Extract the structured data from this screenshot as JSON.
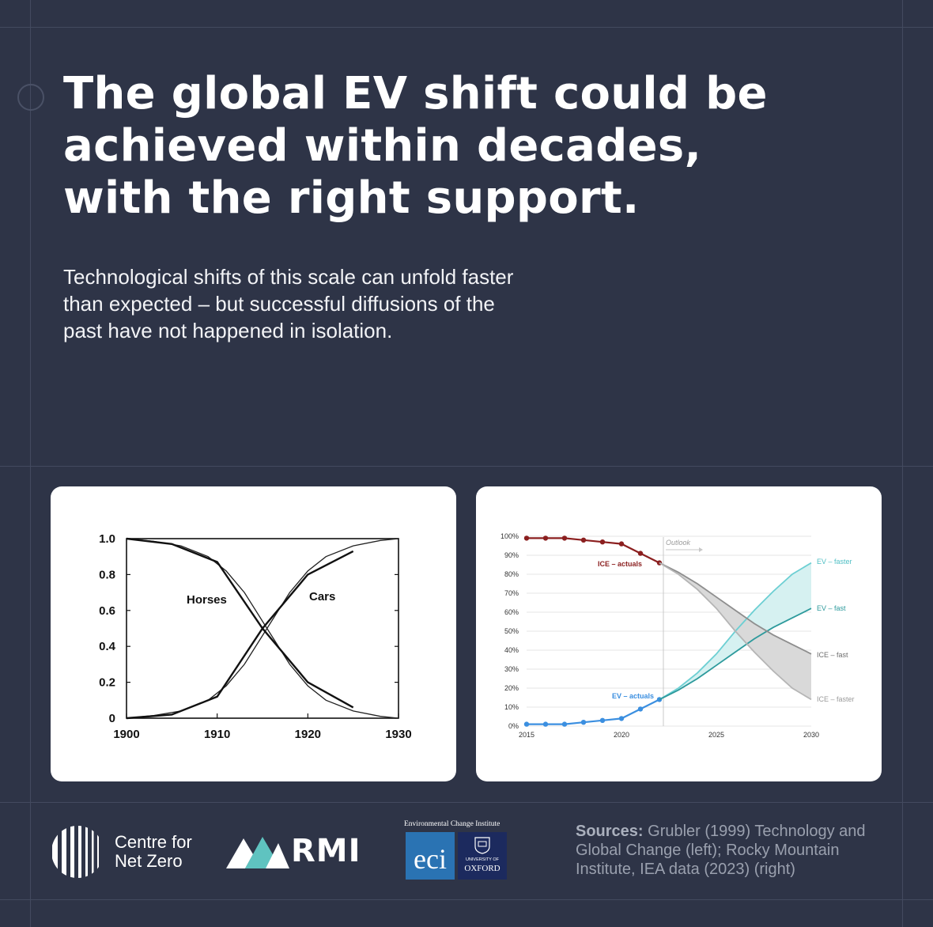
{
  "title": {
    "lines": [
      "The global EV shift could be",
      "achieved within decades,",
      "with the right support."
    ]
  },
  "subtitle": {
    "lines": [
      "Technological shifts of this scale can unfold faster",
      "than expected – but successful diffusions of the",
      "past have not happened in isolation."
    ]
  },
  "chart_data": [
    {
      "type": "line",
      "xlim": [
        1900,
        1930
      ],
      "ylim": [
        0,
        1.0
      ],
      "x_ticks": [
        "1900",
        "1910",
        "1920",
        "1930"
      ],
      "y_ticks": [
        "1.0",
        "0.8",
        "0.6",
        "0.4",
        "0.2",
        "0"
      ],
      "grid": false,
      "series": [
        {
          "name": "Horses",
          "x": [
            1900,
            1905,
            1910,
            1915,
            1920,
            1925
          ],
          "y": [
            1.0,
            0.97,
            0.87,
            0.5,
            0.2,
            0.06
          ]
        },
        {
          "name": "Cars",
          "x": [
            1900,
            1905,
            1910,
            1915,
            1920,
            1925
          ],
          "y": [
            0.0,
            0.02,
            0.12,
            0.5,
            0.8,
            0.93
          ]
        }
      ],
      "fits": [
        {
          "x": [
            1900,
            1903,
            1906,
            1909,
            1911,
            1913,
            1915.5,
            1918,
            1920,
            1922,
            1925,
            1928,
            1930
          ],
          "y": [
            1.0,
            0.985,
            0.96,
            0.9,
            0.82,
            0.7,
            0.5,
            0.3,
            0.18,
            0.1,
            0.04,
            0.01,
            0.0
          ]
        },
        {
          "x": [
            1900,
            1903,
            1906,
            1909,
            1911,
            1913,
            1915.5,
            1918,
            1920,
            1922,
            1925,
            1928,
            1930
          ],
          "y": [
            0.0,
            0.015,
            0.04,
            0.1,
            0.18,
            0.3,
            0.5,
            0.7,
            0.82,
            0.9,
            0.96,
            0.99,
            1.0
          ]
        }
      ]
    },
    {
      "type": "line",
      "xlim": [
        2015,
        2030
      ],
      "ylim": [
        0,
        100
      ],
      "x_ticks": [
        "2015",
        "2020",
        "2025",
        "2030"
      ],
      "y_ticks": [
        "100%",
        "90%",
        "80%",
        "70%",
        "60%",
        "50%",
        "40%",
        "30%",
        "20%",
        "10%",
        "0%"
      ],
      "grid": true,
      "annotation": "Outlook",
      "annotation_x": 2022,
      "series": [
        {
          "name": "ICE – actuals",
          "color": "#8b1f1f",
          "x": [
            2015,
            2016,
            2017,
            2018,
            2019,
            2020,
            2021,
            2022
          ],
          "y": [
            99,
            99,
            99,
            98,
            97,
            96,
            91,
            86
          ]
        },
        {
          "name": "EV – actuals",
          "color": "#3b8fe0",
          "x": [
            2015,
            2016,
            2017,
            2018,
            2019,
            2020,
            2021,
            2022
          ],
          "y": [
            1,
            1,
            1,
            2,
            3,
            4,
            9,
            14
          ]
        },
        {
          "name": "EV – faster",
          "color": "#6ccfd3",
          "x": [
            2022,
            2023,
            2024,
            2025,
            2026,
            2027,
            2028,
            2029,
            2030
          ],
          "y": [
            14,
            20,
            28,
            38,
            50,
            61,
            71,
            80,
            86
          ]
        },
        {
          "name": "EV – fast",
          "color": "#2d9a9c",
          "x": [
            2022,
            2023,
            2024,
            2025,
            2026,
            2027,
            2028,
            2029,
            2030
          ],
          "y": [
            14,
            19,
            25,
            32,
            39,
            46,
            52,
            57,
            62
          ]
        },
        {
          "name": "ICE – fast",
          "color": "#8e8e8e",
          "x": [
            2022,
            2023,
            2024,
            2025,
            2026,
            2027,
            2028,
            2029,
            2030
          ],
          "y": [
            86,
            81,
            75,
            68,
            61,
            54,
            48,
            43,
            38
          ]
        },
        {
          "name": "ICE – faster",
          "color": "#b5b5b5",
          "x": [
            2022,
            2023,
            2024,
            2025,
            2026,
            2027,
            2028,
            2029,
            2030
          ],
          "y": [
            86,
            80,
            72,
            62,
            50,
            39,
            29,
            20,
            14
          ]
        }
      ]
    }
  ],
  "footer": {
    "cnz_name_line1": "Centre for",
    "cnz_name_line2": "Net Zero",
    "rmi_logo_text": "RMI",
    "eci_header": "Environmental Change Institute",
    "eci_logo_text": "eci",
    "oxford_small": "UNIVERSITY OF",
    "oxford_name": "OXFORD",
    "sources_label": "Sources:",
    "sources_lines": [
      " Grubler (1999) Technology and",
      "Global Change (left); Rocky Mountain",
      "Institute, IEA data (2023) (right)"
    ]
  },
  "colors": {
    "background": "#2e3447",
    "card": "#ffffff",
    "rmi_accent": "#5fc3c0",
    "eci_blue": "#2a73b3",
    "oxford_navy": "#1c2a5e"
  }
}
